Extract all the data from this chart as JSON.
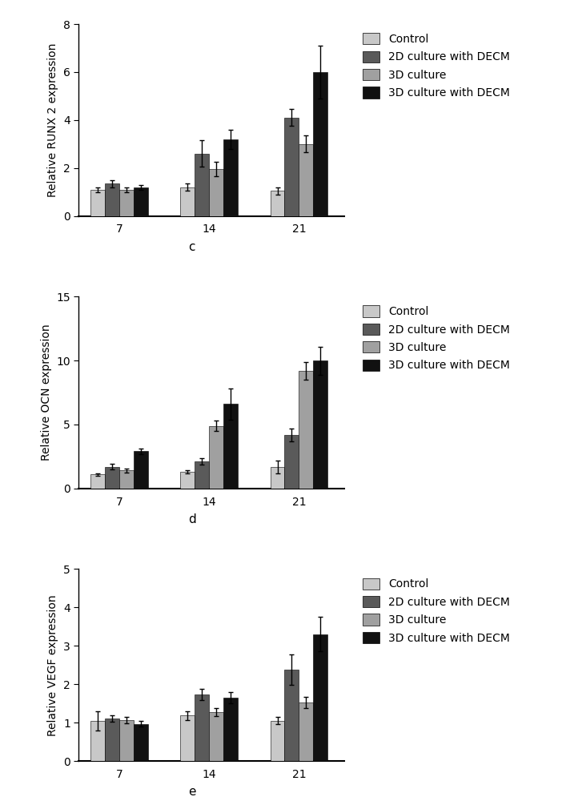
{
  "charts": [
    {
      "ylabel": "Relative RUNX 2 expression",
      "label": "c",
      "ylim": [
        0,
        8
      ],
      "yticks": [
        0,
        2,
        4,
        6,
        8
      ],
      "groups": [
        "7",
        "14",
        "21"
      ],
      "bars": {
        "Control": [
          1.1,
          1.2,
          1.05
        ],
        "2D culture with DECM": [
          1.35,
          2.6,
          4.1
        ],
        "3D culture": [
          1.1,
          1.95,
          3.0
        ],
        "3D culture with DECM": [
          1.2,
          3.2,
          6.0
        ]
      },
      "errors": {
        "Control": [
          0.1,
          0.15,
          0.15
        ],
        "2D culture with DECM": [
          0.15,
          0.55,
          0.35
        ],
        "3D culture": [
          0.1,
          0.3,
          0.35
        ],
        "3D culture with DECM": [
          0.1,
          0.4,
          1.1
        ]
      }
    },
    {
      "ylabel": "Relative OCN expression",
      "label": "d",
      "ylim": [
        0,
        15
      ],
      "yticks": [
        0,
        5,
        10,
        15
      ],
      "groups": [
        "7",
        "14",
        "21"
      ],
      "bars": {
        "Control": [
          1.1,
          1.3,
          1.7
        ],
        "2D culture with DECM": [
          1.7,
          2.1,
          4.2
        ],
        "3D culture": [
          1.4,
          4.9,
          9.2
        ],
        "3D culture with DECM": [
          2.9,
          6.6,
          10.0
        ]
      },
      "errors": {
        "Control": [
          0.1,
          0.15,
          0.5
        ],
        "2D culture with DECM": [
          0.2,
          0.25,
          0.5
        ],
        "3D culture": [
          0.15,
          0.4,
          0.7
        ],
        "3D culture with DECM": [
          0.2,
          1.2,
          1.1
        ]
      }
    },
    {
      "ylabel": "Relative VEGF expression",
      "label": "e",
      "ylim": [
        0,
        5
      ],
      "yticks": [
        0,
        1,
        2,
        3,
        4,
        5
      ],
      "groups": [
        "7",
        "14",
        "21"
      ],
      "bars": {
        "Control": [
          1.05,
          1.18,
          1.05
        ],
        "2D culture with DECM": [
          1.1,
          1.73,
          2.38
        ],
        "3D culture": [
          1.07,
          1.27,
          1.52
        ],
        "3D culture with DECM": [
          0.97,
          1.65,
          3.3
        ]
      },
      "errors": {
        "Control": [
          0.25,
          0.12,
          0.1
        ],
        "2D culture with DECM": [
          0.08,
          0.15,
          0.4
        ],
        "3D culture": [
          0.08,
          0.1,
          0.15
        ],
        "3D culture with DECM": [
          0.07,
          0.15,
          0.45
        ]
      }
    }
  ],
  "bar_colors": {
    "Control": "#c8c8c8",
    "2D culture with DECM": "#5a5a5a",
    "3D culture": "#a0a0a0",
    "3D culture with DECM": "#111111"
  },
  "legend_labels": [
    "Control",
    "2D culture with DECM",
    "3D culture",
    "3D culture with DECM"
  ],
  "bar_width": 0.16,
  "group_positions": [
    1,
    2,
    3
  ],
  "font_size": 10,
  "label_font_size": 11
}
